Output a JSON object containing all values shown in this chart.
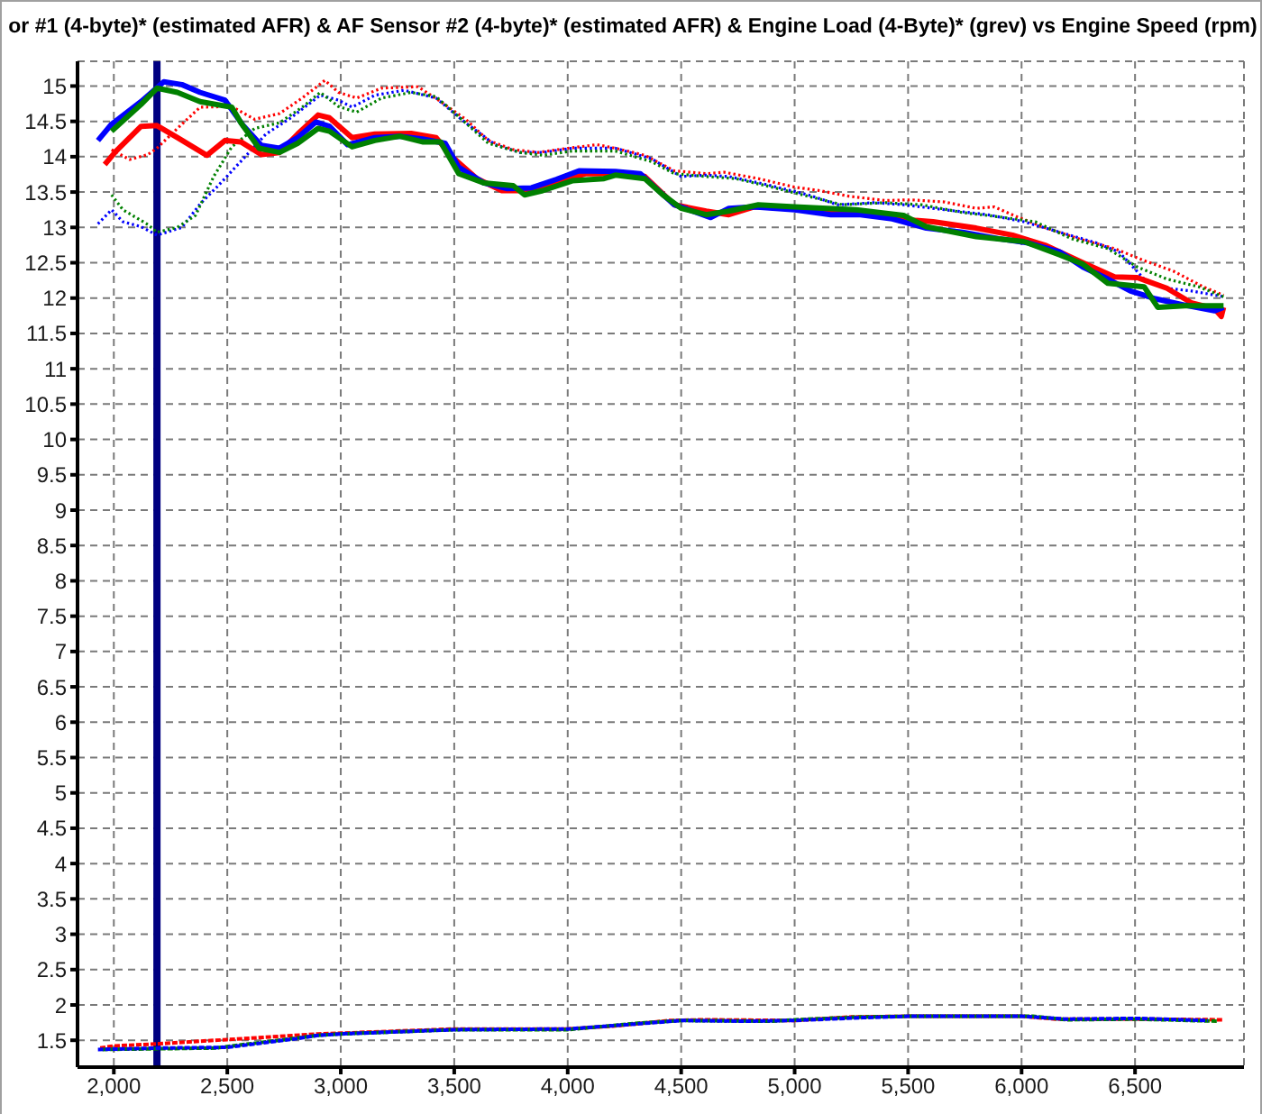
{
  "chart_data": {
    "type": "line",
    "title": "or #1 (4-byte)* (estimated AFR) & AF Sensor #2 (4-byte)* (estimated AFR) & Engine Load (4-Byte)* (grev) vs Engine Speed (rpm)",
    "xlim": [
      1840,
      6980
    ],
    "ylim": [
      1.12,
      15.35
    ],
    "xticks": [
      {
        "value": 2000,
        "label": "2,000"
      },
      {
        "value": 2500,
        "label": "2,500"
      },
      {
        "value": 3000,
        "label": "3,000"
      },
      {
        "value": 3500,
        "label": "3,500"
      },
      {
        "value": 4000,
        "label": "4,000"
      },
      {
        "value": 4500,
        "label": "4,500"
      },
      {
        "value": 5000,
        "label": "5,000"
      },
      {
        "value": 5500,
        "label": "5,500"
      },
      {
        "value": 6000,
        "label": "6,000"
      },
      {
        "value": 6500,
        "label": "6,500"
      }
    ],
    "yticks": [
      1.5,
      2,
      2.5,
      3,
      3.5,
      4,
      4.5,
      5,
      5.5,
      6,
      6.5,
      7,
      7.5,
      8,
      8.5,
      9,
      9.5,
      10,
      10.5,
      11,
      11.5,
      12,
      12.5,
      13,
      13.5,
      14,
      14.5,
      15
    ],
    "grid": true,
    "marker": "none",
    "ref_lines": [
      {
        "axis": "x",
        "value": 2190,
        "color": "#000080"
      }
    ],
    "series": [
      {
        "color": "#ff0000",
        "line_style": "dotted",
        "x": [
          1990,
          2070,
          2150,
          2190,
          2280,
          2380,
          2520,
          2620,
          2730,
          2830,
          2930,
          2990,
          3070,
          3180,
          3340,
          3440,
          3550,
          3650,
          3760,
          3870,
          4000,
          4130,
          4210,
          4340,
          4470,
          4610,
          4690,
          4840,
          5000,
          5110,
          5240,
          5400,
          5510,
          5660,
          5800,
          5880,
          5980,
          6110,
          6250,
          6410,
          6540,
          6670,
          6800,
          6890
        ],
        "values": [
          14.1,
          13.96,
          14.03,
          14.12,
          14.4,
          14.7,
          14.71,
          14.53,
          14.61,
          14.83,
          15.08,
          14.91,
          14.83,
          14.97,
          14.99,
          14.78,
          14.53,
          14.23,
          14.1,
          14.06,
          14.12,
          14.17,
          14.12,
          14.02,
          13.8,
          13.76,
          13.78,
          13.69,
          13.57,
          13.52,
          13.44,
          13.38,
          13.39,
          13.36,
          13.27,
          13.29,
          13.15,
          12.99,
          12.84,
          12.7,
          12.53,
          12.38,
          12.16,
          12.04
        ]
      },
      {
        "color": "#0000ff",
        "line_style": "dotted",
        "x": [
          1930,
          1990,
          2040,
          2120,
          2190,
          2300,
          2380,
          2460,
          2570,
          2670,
          2780,
          2910,
          2990,
          3050,
          3150,
          3280,
          3420,
          3550,
          3680,
          3790,
          3890,
          4020,
          4210,
          4370,
          4500,
          4610,
          4710,
          4870,
          5060,
          5190,
          5350,
          5480,
          5660,
          5850,
          6010,
          6170,
          6330,
          6430,
          6540,
          6640,
          6750,
          6890
        ],
        "values": [
          13.05,
          13.25,
          13.08,
          13.01,
          12.89,
          13.0,
          13.33,
          13.59,
          13.97,
          14.32,
          14.55,
          14.87,
          14.8,
          14.7,
          14.87,
          14.94,
          14.83,
          14.48,
          14.17,
          14.06,
          14.06,
          14.12,
          14.12,
          13.97,
          13.72,
          13.74,
          13.72,
          13.61,
          13.46,
          13.32,
          13.35,
          13.32,
          13.25,
          13.18,
          13.08,
          12.93,
          12.78,
          12.65,
          12.27,
          12.14,
          12.1,
          12.02
        ]
      },
      {
        "color": "#008000",
        "line_style": "dotted",
        "x": [
          1990,
          2040,
          2150,
          2190,
          2280,
          2360,
          2440,
          2520,
          2620,
          2730,
          2830,
          2910,
          2990,
          3070,
          3180,
          3310,
          3420,
          3550,
          3650,
          3790,
          3890,
          4020,
          4210,
          4370,
          4470,
          4610,
          4740,
          4900,
          5060,
          5210,
          5400,
          5560,
          5740,
          5900,
          6060,
          6220,
          6380,
          6510,
          6640,
          6780,
          6890
        ],
        "values": [
          13.46,
          13.25,
          13.04,
          12.93,
          13.0,
          13.17,
          13.72,
          14.14,
          14.4,
          14.48,
          14.7,
          14.91,
          14.71,
          14.63,
          14.83,
          14.91,
          14.85,
          14.48,
          14.19,
          14.06,
          14.02,
          14.08,
          14.08,
          13.93,
          13.76,
          13.72,
          13.69,
          13.57,
          13.44,
          13.32,
          13.35,
          13.32,
          13.21,
          13.15,
          13.08,
          12.84,
          12.7,
          12.44,
          12.27,
          12.16,
          12.02
        ]
      },
      {
        "color": "#ff0000",
        "line_style": "solid",
        "x": [
          1960,
          2010,
          2120,
          2190,
          2280,
          2410,
          2490,
          2560,
          2650,
          2730,
          2810,
          2900,
          2950,
          3050,
          3150,
          3310,
          3420,
          3490,
          3600,
          3710,
          3810,
          3950,
          4080,
          4210,
          4340,
          4470,
          4610,
          4710,
          4820,
          5000,
          5270,
          5450,
          5610,
          5800,
          5960,
          6110,
          6270,
          6410,
          6510,
          6640,
          6750,
          6850,
          6880,
          6890
        ],
        "values": [
          13.89,
          14.08,
          14.43,
          14.44,
          14.27,
          14.02,
          14.23,
          14.21,
          14.03,
          14.06,
          14.32,
          14.59,
          14.55,
          14.27,
          14.32,
          14.33,
          14.27,
          14.0,
          13.69,
          13.52,
          13.52,
          13.63,
          13.76,
          13.76,
          13.72,
          13.32,
          13.23,
          13.18,
          13.29,
          13.27,
          13.21,
          13.12,
          13.08,
          12.99,
          12.89,
          12.74,
          12.5,
          12.3,
          12.29,
          12.14,
          11.93,
          11.85,
          11.74,
          11.87
        ]
      },
      {
        "color": "#0000ff",
        "line_style": "solid",
        "x": [
          1930,
          1990,
          2120,
          2220,
          2300,
          2380,
          2490,
          2570,
          2650,
          2730,
          2810,
          2890,
          2950,
          3030,
          3150,
          3260,
          3360,
          3460,
          3520,
          3630,
          3730,
          3840,
          3950,
          4050,
          4210,
          4320,
          4390,
          4470,
          4550,
          4630,
          4710,
          4820,
          5000,
          5160,
          5290,
          5430,
          5580,
          5740,
          5900,
          6030,
          6170,
          6270,
          6380,
          6480,
          6590,
          6720,
          6850,
          6890
        ],
        "values": [
          14.23,
          14.46,
          14.78,
          15.06,
          15.02,
          14.91,
          14.8,
          14.44,
          14.16,
          14.12,
          14.27,
          14.49,
          14.43,
          14.17,
          14.27,
          14.29,
          14.25,
          14.19,
          13.85,
          13.63,
          13.55,
          13.56,
          13.68,
          13.8,
          13.79,
          13.76,
          13.55,
          13.32,
          13.23,
          13.14,
          13.27,
          13.29,
          13.25,
          13.18,
          13.18,
          13.12,
          12.99,
          12.93,
          12.84,
          12.78,
          12.65,
          12.44,
          12.27,
          12.1,
          11.99,
          11.9,
          11.82,
          11.87
        ]
      },
      {
        "color": "#008000",
        "line_style": "solid",
        "x": [
          1990,
          2120,
          2190,
          2280,
          2380,
          2520,
          2560,
          2640,
          2730,
          2810,
          2900,
          2950,
          3050,
          3150,
          3260,
          3360,
          3440,
          3520,
          3630,
          3760,
          3810,
          3890,
          4020,
          4160,
          4210,
          4340,
          4420,
          4500,
          4610,
          4710,
          4840,
          5000,
          5270,
          5480,
          5580,
          5800,
          6010,
          6170,
          6270,
          6380,
          6540,
          6600,
          6720,
          6890
        ],
        "values": [
          14.36,
          14.74,
          14.97,
          14.91,
          14.78,
          14.7,
          14.48,
          14.12,
          14.06,
          14.19,
          14.4,
          14.36,
          14.14,
          14.23,
          14.29,
          14.21,
          14.21,
          13.76,
          13.63,
          13.59,
          13.46,
          13.52,
          13.66,
          13.69,
          13.74,
          13.69,
          13.46,
          13.27,
          13.18,
          13.23,
          13.32,
          13.29,
          13.25,
          13.17,
          13.01,
          12.87,
          12.8,
          12.61,
          12.48,
          12.21,
          12.16,
          11.87,
          11.89,
          11.89
        ]
      },
      {
        "color": "#ff0000",
        "line_style": "dashed",
        "x": [
          1940,
          2000,
          2200,
          2500,
          2900,
          3000,
          3500,
          4000,
          4200,
          4450,
          4600,
          5000,
          5250,
          5500,
          6000,
          6150,
          6500,
          6890
        ],
        "values": [
          1.39,
          1.42,
          1.45,
          1.51,
          1.59,
          1.6,
          1.66,
          1.66,
          1.7,
          1.78,
          1.79,
          1.78,
          1.83,
          1.84,
          1.84,
          1.8,
          1.8,
          1.79
        ]
      },
      {
        "color": "#008000",
        "line_style": "dashed",
        "x": [
          1950,
          2200,
          2450,
          2700,
          2900,
          3000,
          3500,
          4000,
          4300,
          4500,
          4900,
          5000,
          5300,
          5500,
          6050,
          6200,
          6500,
          6860
        ],
        "values": [
          1.37,
          1.38,
          1.39,
          1.49,
          1.57,
          1.59,
          1.65,
          1.65,
          1.74,
          1.78,
          1.77,
          1.79,
          1.83,
          1.84,
          1.84,
          1.79,
          1.8,
          1.77
        ]
      },
      {
        "color": "#0000ff",
        "line_style": "dashed",
        "x": [
          1930,
          2200,
          2500,
          2800,
          2900,
          3000,
          3500,
          4000,
          4300,
          4500,
          4800,
          5000,
          5300,
          5500,
          6000,
          6200,
          6500,
          6820
        ],
        "values": [
          1.37,
          1.39,
          1.4,
          1.52,
          1.57,
          1.59,
          1.65,
          1.66,
          1.73,
          1.78,
          1.77,
          1.78,
          1.82,
          1.84,
          1.84,
          1.8,
          1.81,
          1.78
        ]
      }
    ]
  }
}
